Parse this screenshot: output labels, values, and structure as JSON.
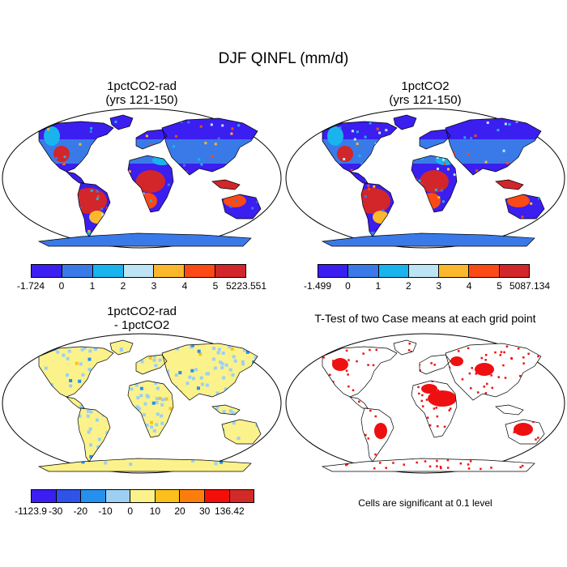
{
  "figure": {
    "title": "DJF QINFL (mm/d)",
    "note": "Cells are significant at 0.1 level"
  },
  "panels": [
    {
      "title_line1": "1pctCO2-rad",
      "title_line2": "(yrs 121-150)"
    },
    {
      "title_line1": "1pctCO2",
      "title_line2": "(yrs 121-150)"
    },
    {
      "title_line1": "1pctCO2-rad",
      "title_line2": "- 1pctCO2"
    },
    {
      "title_line1": "T-Test of two Case means at each grid point",
      "title_line2": ""
    }
  ],
  "colorbars": [
    {
      "colors": [
        "#3b1ef0",
        "#3a7ae8",
        "#19b4ee",
        "#bde4f4",
        "#fbb82c",
        "#fb4a16",
        "#d2262a"
      ],
      "labels": [
        "-1.724",
        "0",
        "1",
        "2",
        "3",
        "4",
        "5",
        "5223.551"
      ]
    },
    {
      "colors": [
        "#3b1ef0",
        "#3a7ae8",
        "#19b4ee",
        "#bde4f4",
        "#fbb82c",
        "#fb4a16",
        "#d2262a"
      ],
      "labels": [
        "-1.499",
        "0",
        "1",
        "2",
        "3",
        "4",
        "5",
        "5087.134"
      ]
    },
    {
      "colors": [
        "#3b1ef0",
        "#2f52e8",
        "#2590ee",
        "#9cd0f2",
        "#fbf28c",
        "#fbc01c",
        "#fb7e0c",
        "#f40e0a",
        "#d22a26"
      ],
      "labels": [
        "-1123.9",
        "-30",
        "-20",
        "-10",
        "0",
        "10",
        "20",
        "30",
        "136.42"
      ]
    }
  ]
}
